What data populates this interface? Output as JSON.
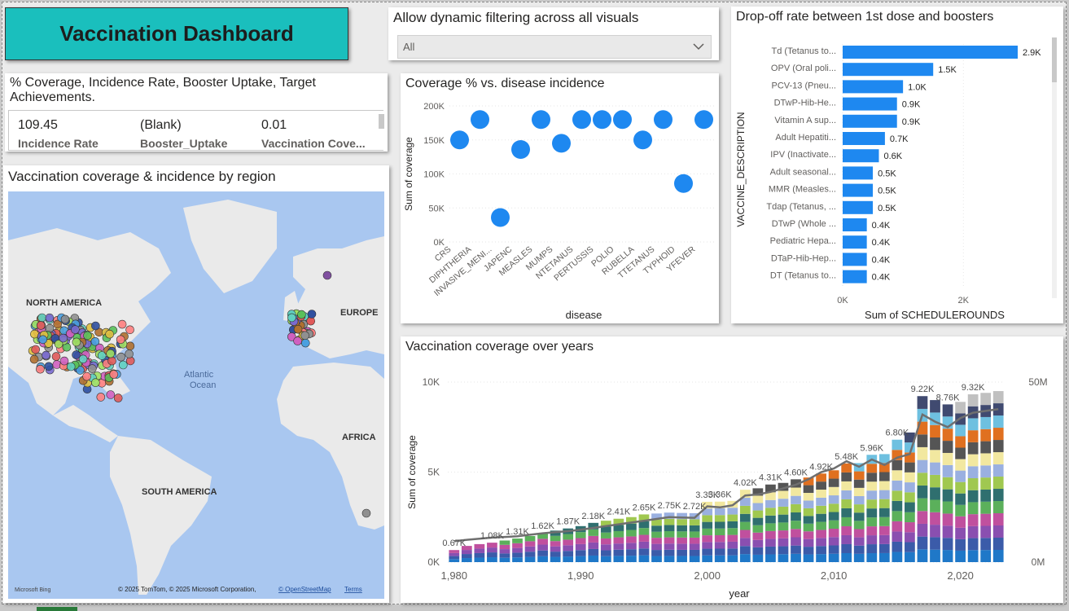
{
  "dashboard": {
    "title": "Vaccination Dashboard"
  },
  "slicer": {
    "title": "Allow dynamic filtering across all visuals",
    "selected": "All"
  },
  "kpi": {
    "title": "% Coverage, Incidence Rate, Booster Uptake, Target Achievements.",
    "cards": [
      {
        "value": "109.45",
        "label": "Incidence Rate"
      },
      {
        "value": "(Blank)",
        "label": "Booster_Uptake"
      },
      {
        "value": "0.01",
        "label": "Vaccination Cove..."
      }
    ]
  },
  "map": {
    "title": "Vaccination coverage & incidence by region",
    "labels": {
      "north_america": "NORTH AMERICA",
      "europe": "EUROPE",
      "atlantic": "Atlantic Ocean",
      "africa": "AFRICA",
      "south_america": "SOUTH AMERICA"
    },
    "attribution": "© 2025 TomTom, © 2025 Microsoft Corporation,",
    "osm": "© OpenStreetMap",
    "terms": "Terms",
    "brand": "Microsoft Bing",
    "colors": {
      "water": "#a9c7f0",
      "land": "#eaeaea"
    }
  },
  "scatter": {
    "title": "Coverage % vs. disease incidence",
    "chart_data": {
      "type": "scatter",
      "xlabel": "disease",
      "ylabel": "Sum of coverage",
      "ylim": [
        0,
        200000
      ],
      "yticks": [
        0,
        50000,
        100000,
        150000,
        200000
      ],
      "ytick_labels": [
        "0K",
        "50K",
        "100K",
        "150K",
        "200K"
      ],
      "categories": [
        "CRS",
        "DIPHTHERIA",
        "INVASIVE_MENI...",
        "JAPENC",
        "MEASLES",
        "MUMPS",
        "NTETANUS",
        "PERTUSSIS",
        "POLIO",
        "RUBELLA",
        "TTETANUS",
        "TYPHOID",
        "YFEVER"
      ],
      "values": [
        150000,
        180000,
        36000,
        136000,
        180000,
        145000,
        180000,
        180000,
        180000,
        150000,
        180000,
        86000,
        180000
      ],
      "color": "#1e88f0"
    }
  },
  "bars": {
    "title": "Drop-off rate between 1st dose and boosters",
    "chart_data": {
      "type": "bar",
      "orientation": "horizontal",
      "xlabel": "Sum of SCHEDULEROUNDS",
      "ylabel": "VACCINE_DESCRIPTION",
      "xlim": [
        0,
        2900
      ],
      "xticks": [
        0,
        2000
      ],
      "xtick_labels": [
        "0K",
        "2K"
      ],
      "categories": [
        "Td (Tetanus to...",
        "OPV (Oral poli...",
        "PCV-13 (Pneu...",
        "DTwP-Hib-He...",
        "Vitamin A sup...",
        "Adult Hepatiti...",
        "IPV (Inactivate...",
        "Adult seasonal...",
        "MMR (Measles...",
        "Tdap (Tetanus, ...",
        "DTwP (Whole ...",
        "Pediatric Hepa...",
        "DTaP-Hib-Hep...",
        "DT (Tetanus to..."
      ],
      "values": [
        2900,
        1500,
        1000,
        900,
        900,
        700,
        600,
        500,
        500,
        500,
        400,
        400,
        400,
        400
      ],
      "data_labels": [
        "2.9K",
        "1.5K",
        "1.0K",
        "0.9K",
        "0.9K",
        "0.7K",
        "0.6K",
        "0.5K",
        "0.5K",
        "0.5K",
        "0.4K",
        "0.4K",
        "0.4K",
        "0.4K"
      ],
      "color": "#1e88f0"
    }
  },
  "years": {
    "title": "Vaccination coverage over years",
    "chart_data": {
      "type": "bar",
      "stacked": true,
      "xlabel": "year",
      "ylabel": "Sum of coverage",
      "xlim": [
        1980,
        2023
      ],
      "xticks": [
        1980,
        1990,
        2000,
        2010,
        2020
      ],
      "xtick_labels": [
        "1,980",
        "1,990",
        "2,000",
        "2,010",
        "2,020"
      ],
      "ylim": [
        0,
        10000
      ],
      "yticks": [
        0,
        5000,
        10000
      ],
      "ytick_labels": [
        "0K",
        "5K",
        "10K"
      ],
      "y2ticks_labels": [
        "0M",
        "50M"
      ],
      "y2lim": [
        0,
        50000000
      ],
      "x": [
        1980,
        1981,
        1982,
        1983,
        1984,
        1985,
        1986,
        1987,
        1988,
        1989,
        1990,
        1991,
        1992,
        1993,
        1994,
        1995,
        1996,
        1997,
        1998,
        1999,
        2000,
        2001,
        2002,
        2003,
        2004,
        2005,
        2006,
        2007,
        2008,
        2009,
        2010,
        2011,
        2012,
        2013,
        2014,
        2015,
        2016,
        2017,
        2018,
        2019,
        2020,
        2021,
        2022,
        2023
      ],
      "totals": [
        670,
        900,
        1000,
        1080,
        1200,
        1310,
        1450,
        1620,
        1750,
        1870,
        2000,
        2180,
        2300,
        2410,
        2500,
        2650,
        2700,
        2750,
        2730,
        2720,
        3350,
        3360,
        3400,
        4020,
        4100,
        4310,
        4400,
        4600,
        4700,
        4920,
        5100,
        5480,
        5500,
        5960,
        6000,
        6800,
        7200,
        9220,
        9000,
        8760,
        8900,
        9320,
        9400,
        9500
      ],
      "data_labels": [
        {
          "year": 1980,
          "label": "0.67K"
        },
        {
          "year": 1983,
          "label": "1.08K"
        },
        {
          "year": 1985,
          "label": "1.31K"
        },
        {
          "year": 1987,
          "label": "1.62K"
        },
        {
          "year": 1989,
          "label": "1.87K"
        },
        {
          "year": 1991,
          "label": "2.18K"
        },
        {
          "year": 1993,
          "label": "2.41K"
        },
        {
          "year": 1995,
          "label": "2.65K"
        },
        {
          "year": 1997,
          "label": "2.75K"
        },
        {
          "year": 1999,
          "label": "2.72K"
        },
        {
          "year": 2000,
          "label": "3.35K"
        },
        {
          "year": 2001,
          "label": "3.36K"
        },
        {
          "year": 2003,
          "label": "4.02K"
        },
        {
          "year": 2005,
          "label": "4.31K"
        },
        {
          "year": 2007,
          "label": "4.60K"
        },
        {
          "year": 2009,
          "label": "4.92K"
        },
        {
          "year": 2011,
          "label": "5.48K"
        },
        {
          "year": 2013,
          "label": "5.96K"
        },
        {
          "year": 2015,
          "label": "6.80K"
        },
        {
          "year": 2017,
          "label": "9.22K"
        },
        {
          "year": 2019,
          "label": "8.76K"
        },
        {
          "year": 2021,
          "label": "9.32K"
        }
      ],
      "line_values": [
        5800000,
        6200000,
        6500000,
        6800000,
        7000000,
        7200000,
        7600000,
        8000000,
        8300000,
        8600000,
        9000000,
        9500000,
        10000000,
        10500000,
        11000000,
        11500000,
        12000000,
        12500000,
        12400000,
        12300000,
        15500000,
        15200000,
        15800000,
        18500000,
        18800000,
        19500000,
        20500000,
        21500000,
        23000000,
        25000000,
        26000000,
        28000000,
        26500000,
        28500000,
        27000000,
        29000000,
        30000000,
        41000000,
        39000000,
        37500000,
        40000000,
        41500000,
        42000000,
        42500000
      ],
      "segment_colors": [
        "#1f78c8",
        "#3b5ba9",
        "#8a4fb0",
        "#c0509e",
        "#5bb05b",
        "#2f6f6f",
        "#a0c850",
        "#9ab0e0",
        "#f2e8a0",
        "#555555",
        "#e07020",
        "#6ec0e0",
        "#404a70",
        "#c0c0c0"
      ],
      "line_color": "#6f6f6f"
    }
  }
}
